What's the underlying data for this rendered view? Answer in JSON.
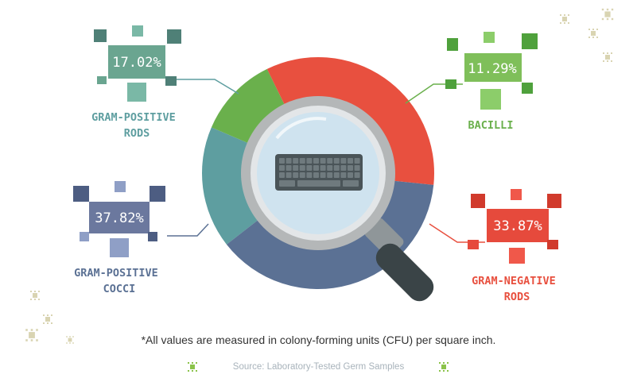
{
  "chart_data": {
    "type": "pie",
    "categories": [
      "Gram-Positive Rods",
      "Bacilli",
      "Gram-Negative Rods",
      "Gram-Positive Cocci"
    ],
    "values": [
      17.02,
      11.29,
      33.87,
      37.82
    ],
    "units": "%",
    "slices": [
      {
        "label_lines": [
          "GRAM-POSITIVE",
          "RODS"
        ],
        "value_text": "17.02%",
        "color": "#5e9ea0",
        "box_color": "#6aa590"
      },
      {
        "label_lines": [
          "BACILLI"
        ],
        "value_text": "11.29%",
        "color": "#6ab04c",
        "box_color": "#7fbf5a"
      },
      {
        "label_lines": [
          "GRAM-NEGATIVE",
          "RODS"
        ],
        "value_text": "33.87%",
        "color": "#e8503f",
        "box_color": "#e64a3c"
      },
      {
        "label_lines": [
          "GRAM-POSITIVE",
          "COCCI"
        ],
        "value_text": "37.82%",
        "color": "#5b7194",
        "box_color": "#6b789e"
      }
    ]
  },
  "footnote": "*All values are measured in colony-forming units (CFU) per square inch.",
  "source": "Source: Laboratory-Tested Germ Samples",
  "icons": [
    "germ-icon",
    "magnifying-glass-icon",
    "keyboard-icon"
  ],
  "colors": {
    "bg": "#ffffff",
    "germ": "#d9d4b2",
    "lens_rim": "#a9abac",
    "lens_glass": "#cfe3ef",
    "handle": "#3a4447"
  }
}
